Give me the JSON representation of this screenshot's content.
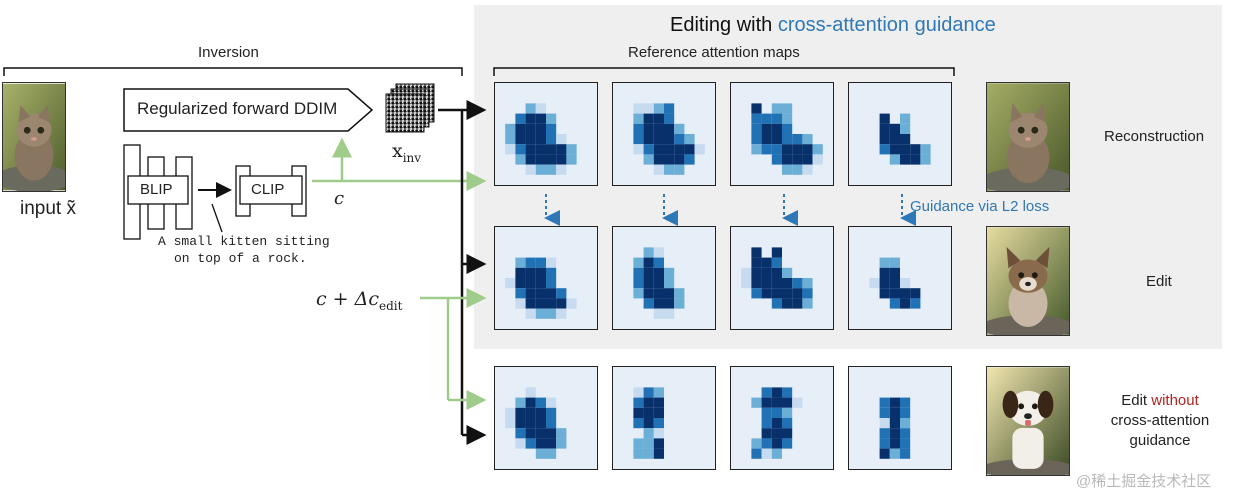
{
  "title": {
    "prefix": "Editing with ",
    "highlight": "cross-attention guidance"
  },
  "inversion_label": "Inversion",
  "reference_maps_label": "Reference attention maps",
  "forward_ddim_label": "Regularized forward DDIM",
  "x_inv_label": "x",
  "x_inv_subscript": "inv",
  "input_label": "input x̃",
  "blip_label": "BLIP",
  "clip_label": "CLIP",
  "caption_line1": "A small kitten sitting",
  "caption_line2": "on top of a rock.",
  "c_label": "c",
  "c_edit_label": "c + Δc",
  "c_edit_subscript": "edit",
  "guidance_label": "Guidance via L2 loss",
  "rows": {
    "reconstruction": "Reconstruction",
    "edit": "Edit",
    "edit_without_prefix": "Edit ",
    "edit_without_highlight": "without",
    "edit_without_line2": "cross-attention",
    "edit_without_line3": "guidance"
  },
  "watermark": "@稀土掘金技术社区",
  "colors": {
    "accent_blue": "#2f78b7",
    "accent_red": "#b22222",
    "arrow_green": "#9fcc8a",
    "panel_gray": "#efefef",
    "map_dark": "#08306b",
    "map_light": "#deebf7"
  }
}
